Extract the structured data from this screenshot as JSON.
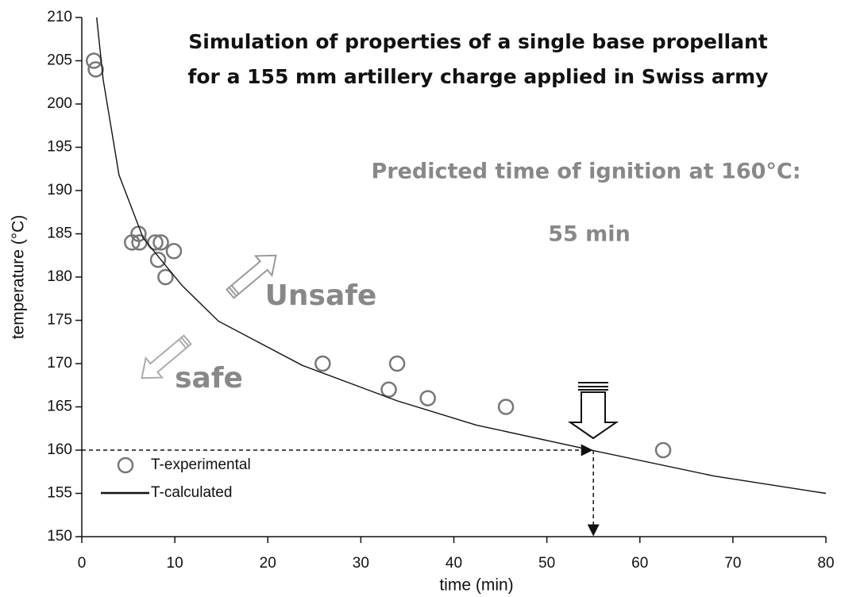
{
  "chart_data": {
    "type": "scatter",
    "title": [
      "Simulation of properties of  a single base propellant",
      "for a 155 mm artillery charge applied in Swiss army"
    ],
    "x_label": "time (min)",
    "y_label": "temperature (°C)",
    "annotations": {
      "prediction": "Predicted time of ignition at 160°C:",
      "prediction_value": "55 min",
      "unsafe": "Unsafe",
      "safe": "safe"
    },
    "xlim": [
      0,
      80
    ],
    "xticks": [
      0,
      10,
      20,
      30,
      40,
      50,
      60,
      70,
      80
    ],
    "ylim": [
      150,
      210
    ],
    "yticks": [
      150,
      155,
      160,
      165,
      170,
      175,
      180,
      185,
      190,
      195,
      200,
      205,
      210
    ],
    "series": [
      {
        "name": "T-experimental",
        "type": "scatter",
        "color": "#777777",
        "x": [
          1.3,
          1.5,
          5.4,
          6.2,
          6.1,
          7.9,
          8.5,
          8.2,
          9.0,
          9.9,
          25.9,
          33.0,
          33.9,
          37.2,
          45.6,
          62.5
        ],
        "values": [
          205,
          204,
          184,
          184,
          185,
          184,
          184,
          182,
          180,
          183,
          170,
          167,
          170,
          166,
          165,
          160
        ]
      },
      {
        "name": "T-calculated",
        "type": "line",
        "color": "#111111",
        "x": [
          1.6,
          2.3,
          4,
          6.6,
          10.8,
          14.7,
          23.7,
          33.9,
          42.4,
          55.2,
          68,
          80
        ],
        "values": [
          210,
          202.8,
          191.8,
          184.5,
          179,
          174.9,
          169.8,
          165.7,
          162.9,
          159.9,
          157,
          155
        ]
      }
    ],
    "ignition_marker": {
      "x": 55,
      "y": 160
    },
    "legend_position": "lower-left"
  }
}
